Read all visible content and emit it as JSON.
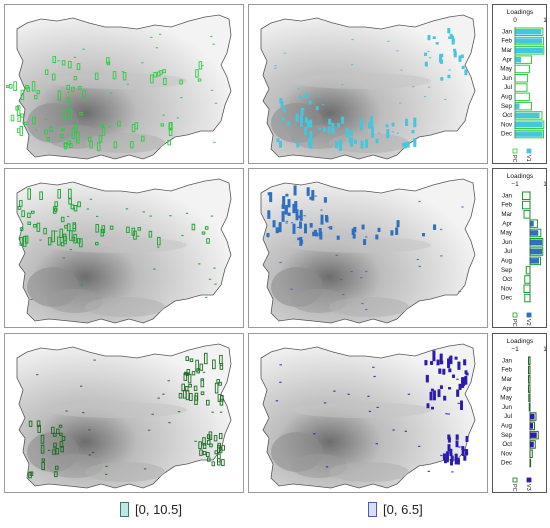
{
  "figure": {
    "legend": [
      {
        "label": "[0, 10.5]",
        "fill": "#bde8e4",
        "stroke": "#3a7a74"
      },
      {
        "label": "[0, 6.5]",
        "fill": "#d6def8",
        "stroke": "#4a5bb0"
      }
    ]
  },
  "chart_data": [
    {
      "type": "map",
      "row": 1,
      "column": 1,
      "component": "PC1",
      "symbol": "hollow-bars",
      "color": "#2ecc40",
      "value_range": [
        0,
        10.5
      ],
      "concentration": [
        "south-west mountains",
        "central belt",
        "south (Rhodopes)"
      ]
    },
    {
      "type": "map",
      "row": 1,
      "column": 2,
      "component": "V1",
      "symbol": "filled-bars",
      "color": "#45c6dd",
      "value_range": [
        0,
        6.5
      ],
      "concentration": [
        "south (Rhodopes)",
        "south-west",
        "north-east"
      ]
    },
    {
      "type": "map",
      "row": 2,
      "column": 1,
      "component": "PC2",
      "symbol": "hollow-bars",
      "color": "#14a02a",
      "value_range": [
        0,
        10.5
      ],
      "concentration": [
        "north-west",
        "central belt"
      ]
    },
    {
      "type": "map",
      "row": 2,
      "column": 2,
      "component": "V2",
      "symbol": "filled-bars",
      "color": "#2f6fc0",
      "value_range": [
        0,
        6.5
      ],
      "concentration": [
        "north-west",
        "central belt"
      ]
    },
    {
      "type": "map",
      "row": 3,
      "column": 1,
      "component": "PC3",
      "symbol": "hollow-bars",
      "color": "#1c6b22",
      "value_range": [
        0,
        10.5
      ],
      "concentration": [
        "north-east",
        "south-east coast",
        "south-west"
      ]
    },
    {
      "type": "map",
      "row": 3,
      "column": 2,
      "component": "V3",
      "symbol": "filled-bars",
      "color": "#2a1ab0",
      "value_range": [
        0,
        6.5
      ],
      "concentration": [
        "north-east",
        "south-east coast"
      ]
    },
    {
      "type": "bar",
      "title": "Loadings",
      "orientation": "horizontal",
      "xlim": [
        0,
        1
      ],
      "tick_labels": [
        "0",
        "1"
      ],
      "categories": [
        "Jan",
        "Feb",
        "Mar",
        "Apr",
        "May",
        "Jun",
        "Jul",
        "Aug",
        "Sep",
        "Oct",
        "Nov",
        "Dec"
      ],
      "series": [
        {
          "name": "PC1",
          "style": "outline",
          "color": "#2ecc40",
          "values": [
            0.93,
            0.95,
            0.96,
            0.55,
            0.48,
            0.42,
            0.4,
            0.48,
            0.55,
            0.9,
            0.96,
            0.95
          ]
        },
        {
          "name": "V1",
          "style": "filled",
          "color": "#45c6dd",
          "values": [
            0.88,
            0.9,
            0.93,
            0.2,
            0.0,
            0.0,
            0.0,
            0.0,
            0.15,
            0.82,
            0.92,
            0.92
          ]
        }
      ]
    },
    {
      "type": "bar",
      "title": "Loadings",
      "orientation": "horizontal",
      "xlim": [
        -1,
        1
      ],
      "tick_labels": [
        "−1",
        "1"
      ],
      "categories": [
        "Jan",
        "Feb",
        "Mar",
        "Apr",
        "May",
        "Jun",
        "Jul",
        "Aug",
        "Sep",
        "Oct",
        "Nov",
        "Dec"
      ],
      "series": [
        {
          "name": "PC2",
          "style": "outline",
          "color": "#14a02a",
          "values": [
            -0.5,
            -0.5,
            -0.4,
            0.5,
            0.72,
            0.85,
            0.85,
            0.7,
            -0.25,
            -0.35,
            -0.4,
            -0.35
          ]
        },
        {
          "name": "V2",
          "style": "filled",
          "color": "#2f6fc0",
          "values": [
            0.0,
            0.0,
            0.0,
            0.25,
            0.55,
            0.8,
            0.8,
            0.6,
            0.0,
            0.0,
            0.0,
            0.0
          ]
        }
      ]
    },
    {
      "type": "bar",
      "title": "Loadings",
      "orientation": "horizontal",
      "xlim": [
        -1,
        1
      ],
      "tick_labels": [
        "−1",
        "1"
      ],
      "categories": [
        "Jan",
        "Feb",
        "Mar",
        "Apr",
        "May",
        "Jun",
        "Jul",
        "Aug",
        "Sep",
        "Oct",
        "Nov",
        "Dec"
      ],
      "series": [
        {
          "name": "PC3",
          "style": "outline",
          "color": "#1c6b22",
          "values": [
            -0.1,
            -0.1,
            -0.1,
            -0.1,
            -0.08,
            -0.05,
            0.4,
            0.3,
            0.55,
            0.35,
            0.15,
            0.02
          ]
        },
        {
          "name": "V3",
          "style": "filled",
          "color": "#2a1ab0",
          "values": [
            0.0,
            0.0,
            0.0,
            0.0,
            0.0,
            0.0,
            0.3,
            0.2,
            0.45,
            0.25,
            0.0,
            0.0
          ]
        }
      ]
    }
  ]
}
